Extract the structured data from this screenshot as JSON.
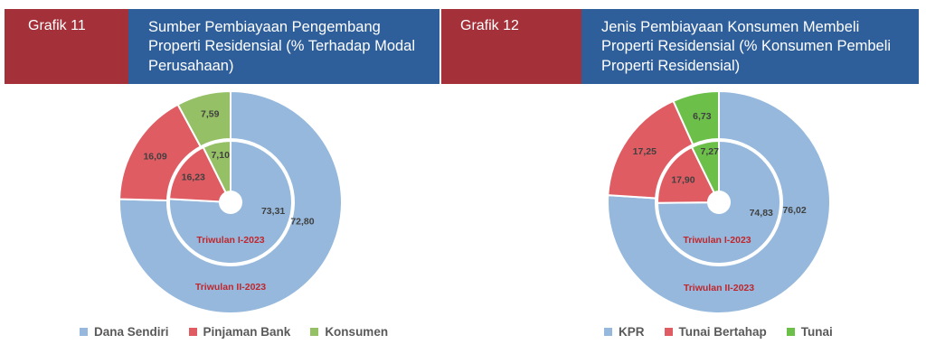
{
  "panel1": {
    "label": "Grafik 11",
    "title": "Sumber Pembiayaan Pengembang Properti Residensial (% Terhadap Modal Perusahaan)"
  },
  "panel2": {
    "label": "Grafik 12",
    "title": "Jenis Pembiayaan Konsumen Membeli Properti Residensial (% Konsumen Pembeli Properti Residensial)"
  },
  "chart_data": [
    {
      "type": "pie",
      "subtype": "nested-donut",
      "categories": [
        "Dana Sendiri",
        "Pinjaman Bank",
        "Konsumen"
      ],
      "colors": [
        "#95b8dc",
        "#e05c63",
        "#95c066"
      ],
      "series": [
        {
          "name": "Triwulan II-2023",
          "values": [
            72.8,
            16.09,
            7.59
          ],
          "labels": [
            "72,80",
            "16,09",
            "7,59"
          ]
        },
        {
          "name": "Triwulan I-2023",
          "values": [
            73.31,
            16.23,
            7.1
          ],
          "labels": [
            "73,31",
            "16,23",
            "7,10"
          ]
        }
      ],
      "legend": "bottom"
    },
    {
      "type": "pie",
      "subtype": "nested-donut",
      "categories": [
        "KPR",
        "Tunai Bertahap",
        "Tunai"
      ],
      "colors": [
        "#95b8dc",
        "#e05c63",
        "#6cc04a"
      ],
      "series": [
        {
          "name": "Triwulan II-2023",
          "values": [
            76.02,
            17.25,
            6.73
          ],
          "labels": [
            "76,02",
            "17,25",
            "6,73"
          ]
        },
        {
          "name": "Triwulan I-2023",
          "values": [
            74.83,
            17.9,
            7.27
          ],
          "labels": [
            "74,83",
            "17,90",
            "7,27"
          ]
        }
      ],
      "legend": "bottom"
    }
  ]
}
